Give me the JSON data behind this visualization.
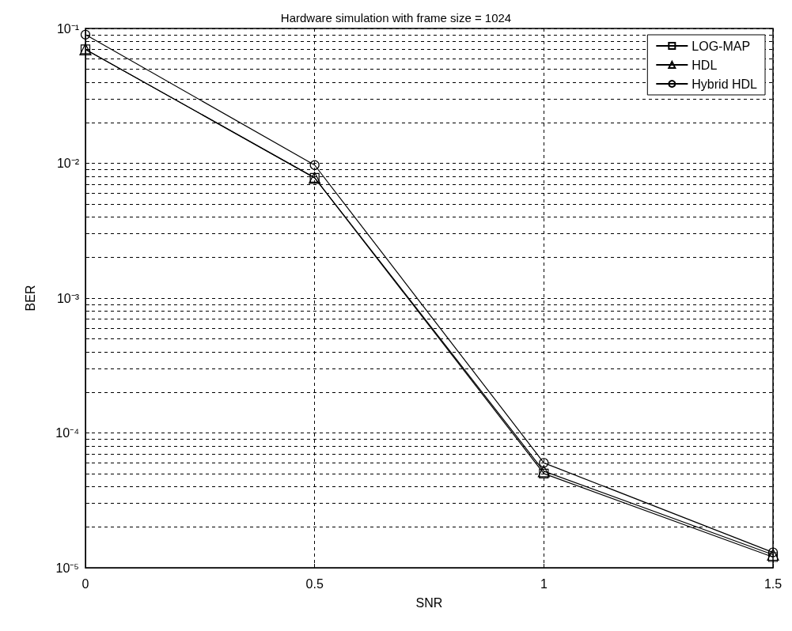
{
  "chart_data": {
    "type": "line",
    "title": "Hardware simulation with frame size = 1024",
    "xlabel": "SNR",
    "ylabel": "BER",
    "x": [
      0,
      0.5,
      1,
      1.5
    ],
    "series": [
      {
        "name": "LOG-MAP",
        "color": "#000000",
        "marker": "square",
        "values": [
          0.07,
          0.0078,
          5e-05,
          1.2e-05
        ]
      },
      {
        "name": "HDL",
        "color": "#000000",
        "marker": "triangle",
        "values": [
          0.07,
          0.0078,
          5.2e-05,
          1.25e-05
        ]
      },
      {
        "name": "Hybrid HDL",
        "color": "#000000",
        "marker": "circle",
        "values": [
          0.09,
          0.0097,
          6e-05,
          1.3e-05
        ]
      }
    ],
    "log": "y",
    "xlim": [
      0,
      1.5
    ],
    "xticks": [
      0,
      0.5,
      1,
      1.5
    ],
    "ylim": [
      1e-05,
      0.1
    ],
    "yticks": [
      {
        "value": 1e-05,
        "label": "10⁻⁵"
      },
      {
        "value": 0.0001,
        "label": "10⁻⁴"
      },
      {
        "value": 0.001,
        "label": "10⁻³"
      },
      {
        "value": 0.01,
        "label": "10⁻²"
      },
      {
        "value": 0.1,
        "label": "10⁻¹"
      }
    ],
    "grid": true,
    "legend": "top right",
    "line_style": "solid"
  }
}
